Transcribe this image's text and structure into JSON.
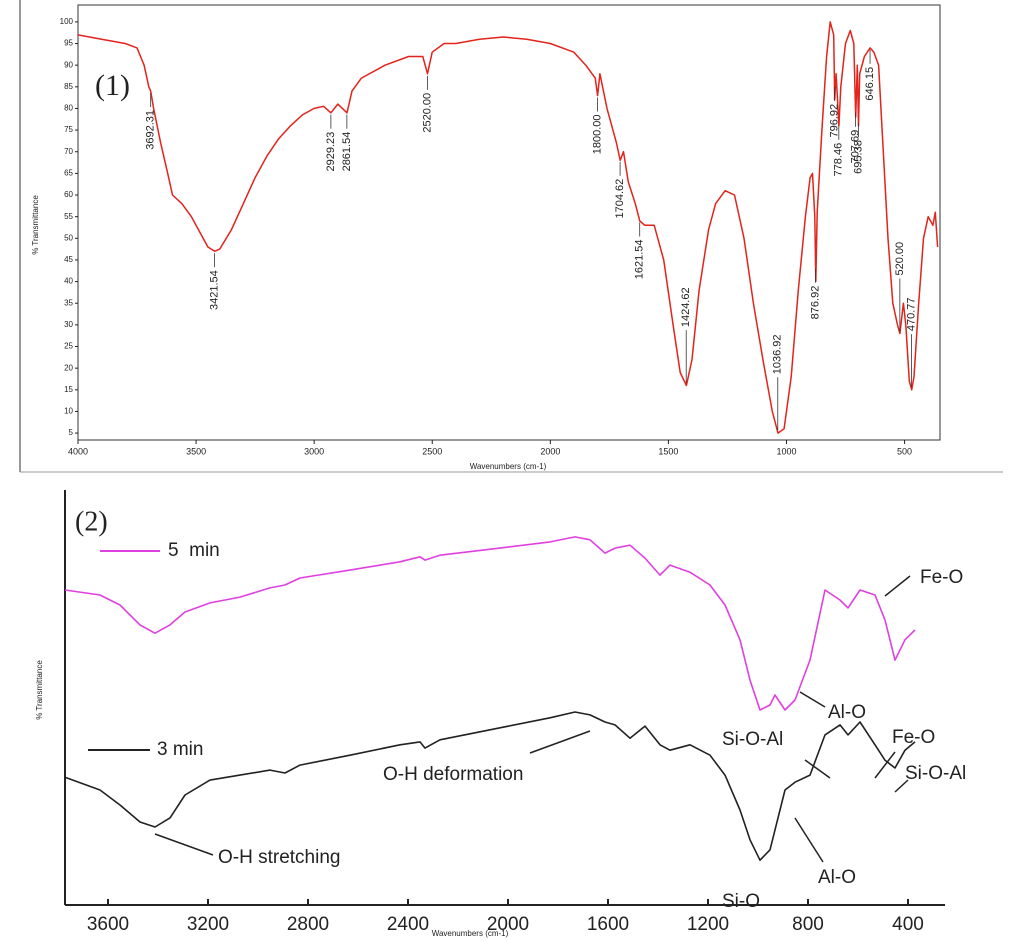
{
  "chart_data": [
    {
      "type": "line",
      "label": "(1)",
      "x_label": "Wavenumbers (cm-1)",
      "y_label": "% Transmittance",
      "color": "#e3231c",
      "xlim": [
        4000,
        350
      ],
      "xticks": [
        4000,
        3500,
        3000,
        2500,
        2000,
        1500,
        1000,
        500
      ],
      "ylim": [
        3.4,
        103.9
      ],
      "yticks": [
        5,
        10,
        15,
        20,
        25,
        30,
        35,
        40,
        45,
        50,
        55,
        60,
        65,
        70,
        75,
        80,
        85,
        90,
        95,
        100
      ],
      "x": [
        4000,
        3900,
        3800,
        3750,
        3720,
        3700,
        3692,
        3680,
        3650,
        3620,
        3600,
        3560,
        3520,
        3480,
        3450,
        3421,
        3400,
        3350,
        3300,
        3250,
        3200,
        3150,
        3100,
        3050,
        3000,
        2960,
        2929,
        2900,
        2861,
        2840,
        2800,
        2700,
        2600,
        2540,
        2520,
        2500,
        2450,
        2400,
        2300,
        2200,
        2100,
        2000,
        1900,
        1850,
        1810,
        1800,
        1790,
        1760,
        1720,
        1704,
        1690,
        1670,
        1640,
        1621,
        1600,
        1560,
        1520,
        1480,
        1450,
        1424,
        1400,
        1370,
        1330,
        1300,
        1260,
        1220,
        1180,
        1140,
        1100,
        1060,
        1036,
        1010,
        980,
        950,
        920,
        900,
        890,
        880,
        876,
        870,
        850,
        830,
        815,
        800,
        796,
        790,
        778,
        770,
        750,
        730,
        715,
        707,
        700,
        695,
        690,
        670,
        646,
        630,
        610,
        590,
        570,
        550,
        530,
        520,
        505,
        495,
        480,
        470,
        460,
        440,
        420,
        400,
        380,
        370,
        360
      ],
      "values": [
        97,
        96,
        95,
        94,
        90,
        85,
        84,
        80,
        72,
        65,
        60,
        58,
        55,
        51,
        48,
        47,
        47.5,
        52,
        58,
        64,
        69,
        73,
        76,
        78.5,
        80,
        80.5,
        79,
        81,
        79,
        84,
        87,
        90,
        92,
        92,
        88,
        93,
        95,
        95,
        96,
        96.5,
        96,
        95,
        93,
        90,
        87,
        83,
        88,
        80,
        72,
        68,
        70,
        63,
        58,
        54,
        53,
        53,
        45,
        30,
        19,
        16,
        22,
        38,
        52,
        58,
        61,
        60,
        50,
        35,
        22,
        10,
        5,
        6,
        18,
        38,
        55,
        64,
        65,
        55,
        40,
        56,
        75,
        92,
        100,
        97,
        82,
        88,
        76,
        85,
        95,
        98,
        95,
        78,
        90,
        76,
        88,
        92,
        94,
        93,
        90,
        70,
        50,
        35,
        30,
        28,
        35,
        30,
        17,
        15,
        18,
        35,
        50,
        55,
        53,
        56,
        48
      ],
      "peaks": [
        3692.31,
        3421.54,
        2929.23,
        2861.54,
        {
          "value": 2520,
          "label": "2520.00"
        },
        {
          "value": 1800,
          "label": "1800.00"
        },
        1704.62,
        1621.54,
        1424.62,
        1036.92,
        876.92,
        796.92,
        778.46,
        707.69,
        695.38,
        646.15,
        {
          "value": 520,
          "label": "520.00"
        },
        470.77
      ]
    },
    {
      "type": "line",
      "label": "(2)",
      "x_label": "Wavenumbers (cm-1)",
      "y_label": "% Transmittance",
      "xlim": [
        3772,
        252
      ],
      "xticks": [
        3600,
        3200,
        2800,
        2400,
        2000,
        1600,
        1200,
        800,
        400
      ],
      "ylim": [
        0,
        100
      ],
      "x": [
        3772,
        3632,
        3552,
        3472,
        3412,
        3352,
        3292,
        3192,
        3072,
        2952,
        2892,
        2832,
        2632,
        2432,
        2352,
        2332,
        2272,
        2032,
        1832,
        1732,
        1672,
        1612,
        1572,
        1512,
        1452,
        1392,
        1352,
        1272,
        1192,
        1132,
        1072,
        1032,
        992,
        952,
        932,
        892,
        852,
        792,
        732,
        672,
        640,
        592,
        532,
        492,
        452,
        412,
        372
      ],
      "series": [
        {
          "name": "5  min",
          "color": "#e040e0",
          "values": [
            75.9,
            74.7,
            72.3,
            67.5,
            65.5,
            67.5,
            70.6,
            72.8,
            74.2,
            76.4,
            77.1,
            78.8,
            80.7,
            82.7,
            83.9,
            83.1,
            84.3,
            86.0,
            87.5,
            88.7,
            88.0,
            84.8,
            86.0,
            86.7,
            83.6,
            79.5,
            81.9,
            80.2,
            77.1,
            72.3,
            63.9,
            54.2,
            47.0,
            48.2,
            50.6,
            47.0,
            49.4,
            59.0,
            75.9,
            73.5,
            71.6,
            75.9,
            74.7,
            68.7,
            59.0,
            63.9,
            66.3
          ]
        },
        {
          "name": "3 min",
          "color": "#222222",
          "values": [
            30.8,
            27.7,
            24.1,
            20.0,
            18.8,
            21.0,
            26.5,
            30.1,
            31.3,
            32.5,
            31.8,
            33.7,
            36.1,
            38.6,
            39.3,
            37.8,
            39.8,
            42.7,
            45.1,
            46.5,
            45.8,
            44.1,
            43.4,
            40.2,
            43.1,
            38.6,
            37.3,
            38.6,
            36.1,
            31.3,
            22.9,
            15.7,
            10.8,
            13.3,
            18.1,
            27.7,
            29.6,
            31.3,
            41.0,
            43.4,
            41.0,
            44.1,
            38.6,
            34.9,
            33.0,
            37.3,
            39.3
          ]
        }
      ],
      "annotations": [
        "O-H stretching",
        "O-H deformation",
        "Si-O",
        "Al-O",
        "Si-O-Al",
        "Fe-O",
        "Si-O-Al",
        "Al-O",
        "Fe-O"
      ]
    }
  ]
}
